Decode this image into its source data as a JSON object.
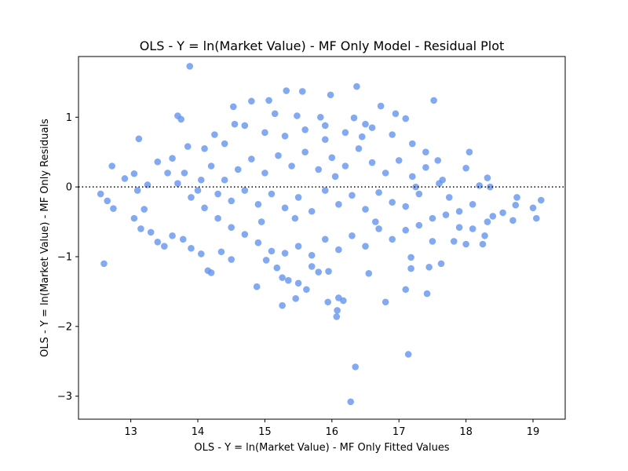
{
  "chart_data": {
    "type": "scatter",
    "title": "OLS - Y = ln(Market Value) - MF Only Model - Residual Plot",
    "xlabel": "OLS - Y = ln(Market Value) - MF Only Fitted Values",
    "ylabel": "OLS - Y = ln(Market Value) - MF Only Residuals",
    "xlim": [
      12.22,
      19.48
    ],
    "ylim": [
      -3.33,
      1.87
    ],
    "xticks": [
      13,
      14,
      15,
      16,
      17,
      18,
      19
    ],
    "yticks": [
      -3,
      -2,
      -1,
      0,
      1
    ],
    "reference_line": {
      "y": 0,
      "style": "dotted"
    },
    "point_color": "#6495ED",
    "points": [
      [
        13.88,
        1.73
      ],
      [
        16.37,
        1.44
      ],
      [
        15.32,
        1.38
      ],
      [
        15.56,
        1.37
      ],
      [
        15.98,
        1.32
      ],
      [
        17.52,
        1.24
      ],
      [
        14.8,
        1.23
      ],
      [
        15.06,
        1.24
      ],
      [
        14.53,
        1.15
      ],
      [
        15.48,
        1.02
      ],
      [
        13.7,
        1.02
      ],
      [
        13.75,
        0.97
      ],
      [
        16.5,
        0.9
      ],
      [
        16.73,
        1.16
      ],
      [
        16.95,
        1.05
      ],
      [
        17.1,
        0.98
      ],
      [
        15.83,
        1.0
      ],
      [
        13.12,
        0.69
      ],
      [
        16.33,
        0.99
      ],
      [
        12.72,
        0.3
      ],
      [
        12.91,
        0.12
      ],
      [
        13.05,
        0.19
      ],
      [
        13.62,
        0.41
      ],
      [
        13.4,
        0.36
      ],
      [
        13.25,
        0.03
      ],
      [
        12.55,
        -0.1
      ],
      [
        12.65,
        -0.2
      ],
      [
        12.74,
        -0.31
      ],
      [
        13.1,
        -0.05
      ],
      [
        13.2,
        -0.32
      ],
      [
        13.05,
        -0.45
      ],
      [
        13.15,
        -0.6
      ],
      [
        13.3,
        -0.65
      ],
      [
        13.4,
        -0.79
      ],
      [
        13.5,
        -0.85
      ],
      [
        13.62,
        -0.7
      ],
      [
        13.78,
        -0.75
      ],
      [
        13.9,
        -0.88
      ],
      [
        14.05,
        -0.96
      ],
      [
        14.15,
        -1.2
      ],
      [
        14.2,
        -1.23
      ],
      [
        14.35,
        -0.93
      ],
      [
        14.5,
        -1.04
      ],
      [
        12.6,
        -1.1
      ],
      [
        14.88,
        -1.43
      ],
      [
        15.02,
        -1.05
      ],
      [
        15.18,
        -1.16
      ],
      [
        15.26,
        -1.3
      ],
      [
        15.35,
        -1.34
      ],
      [
        15.46,
        -1.6
      ],
      [
        15.26,
        -1.7
      ],
      [
        15.5,
        -1.38
      ],
      [
        15.62,
        -1.47
      ],
      [
        15.7,
        -1.14
      ],
      [
        15.8,
        -1.22
      ],
      [
        15.95,
        -1.21
      ],
      [
        15.94,
        -1.65
      ],
      [
        16.08,
        -1.77
      ],
      [
        16.07,
        -1.86
      ],
      [
        16.1,
        -1.59
      ],
      [
        16.17,
        -1.63
      ],
      [
        16.35,
        -2.58
      ],
      [
        16.28,
        -3.08
      ],
      [
        16.55,
        -1.24
      ],
      [
        16.8,
        -1.65
      ],
      [
        17.14,
        -2.4
      ],
      [
        17.1,
        -1.47
      ],
      [
        17.18,
        -1.01
      ],
      [
        17.18,
        -1.17
      ],
      [
        17.42,
        -1.53
      ],
      [
        17.45,
        -1.15
      ],
      [
        17.63,
        -1.1
      ],
      [
        17.5,
        -0.78
      ],
      [
        17.82,
        -0.78
      ],
      [
        18.0,
        -0.82
      ],
      [
        18.25,
        -0.82
      ],
      [
        18.4,
        -0.42
      ],
      [
        18.55,
        -0.37
      ],
      [
        18.7,
        -0.48
      ],
      [
        18.76,
        -0.15
      ],
      [
        18.74,
        -0.26
      ],
      [
        19.0,
        -0.3
      ],
      [
        19.05,
        -0.45
      ],
      [
        19.12,
        -0.19
      ],
      [
        18.32,
        -0.5
      ],
      [
        18.28,
        -0.7
      ],
      [
        18.0,
        0.27
      ],
      [
        18.05,
        0.5
      ],
      [
        18.2,
        0.02
      ],
      [
        18.32,
        0.13
      ],
      [
        18.36,
        0.0
      ],
      [
        18.1,
        -0.25
      ],
      [
        17.9,
        -0.35
      ],
      [
        17.75,
        -0.15
      ],
      [
        17.65,
        0.1
      ],
      [
        17.58,
        0.38
      ],
      [
        17.4,
        0.5
      ],
      [
        17.2,
        0.62
      ],
      [
        16.9,
        0.75
      ],
      [
        16.6,
        0.85
      ],
      [
        16.2,
        0.78
      ],
      [
        15.9,
        0.68
      ],
      [
        15.6,
        0.82
      ],
      [
        15.3,
        0.73
      ],
      [
        15.0,
        0.78
      ],
      [
        14.7,
        0.88
      ],
      [
        14.4,
        0.62
      ],
      [
        14.1,
        0.55
      ],
      [
        13.85,
        0.58
      ],
      [
        13.55,
        0.2
      ],
      [
        13.7,
        0.05
      ],
      [
        13.9,
        -0.15
      ],
      [
        14.1,
        -0.3
      ],
      [
        14.3,
        -0.45
      ],
      [
        14.5,
        -0.58
      ],
      [
        14.7,
        -0.68
      ],
      [
        14.9,
        -0.8
      ],
      [
        15.1,
        -0.92
      ],
      [
        15.3,
        -0.95
      ],
      [
        15.5,
        -0.85
      ],
      [
        15.7,
        -0.98
      ],
      [
        15.9,
        -0.75
      ],
      [
        16.1,
        -0.9
      ],
      [
        16.3,
        -0.7
      ],
      [
        16.5,
        -0.85
      ],
      [
        16.7,
        -0.6
      ],
      [
        16.9,
        -0.75
      ],
      [
        17.1,
        -0.62
      ],
      [
        17.3,
        -0.55
      ],
      [
        17.5,
        -0.45
      ],
      [
        17.7,
        -0.4
      ],
      [
        17.9,
        -0.58
      ],
      [
        18.1,
        -0.6
      ],
      [
        14.2,
        0.3
      ],
      [
        14.4,
        0.1
      ],
      [
        14.6,
        0.25
      ],
      [
        14.8,
        0.4
      ],
      [
        15.0,
        0.2
      ],
      [
        15.2,
        0.45
      ],
      [
        15.4,
        0.3
      ],
      [
        15.6,
        0.5
      ],
      [
        15.8,
        0.25
      ],
      [
        16.0,
        0.42
      ],
      [
        16.2,
        0.3
      ],
      [
        16.4,
        0.55
      ],
      [
        16.6,
        0.35
      ],
      [
        16.8,
        0.2
      ],
      [
        17.0,
        0.38
      ],
      [
        17.2,
        0.15
      ],
      [
        17.4,
        0.28
      ],
      [
        17.6,
        0.05
      ],
      [
        14.3,
        -0.1
      ],
      [
        14.5,
        -0.2
      ],
      [
        14.7,
        -0.05
      ],
      [
        14.9,
        -0.25
      ],
      [
        15.1,
        -0.1
      ],
      [
        15.3,
        -0.3
      ],
      [
        15.5,
        -0.15
      ],
      [
        15.7,
        -0.35
      ],
      [
        15.9,
        -0.05
      ],
      [
        16.1,
        -0.25
      ],
      [
        16.3,
        -0.12
      ],
      [
        16.5,
        -0.32
      ],
      [
        16.7,
        -0.08
      ],
      [
        16.9,
        -0.22
      ],
      [
        17.1,
        -0.28
      ],
      [
        17.3,
        -0.1
      ],
      [
        13.8,
        0.2
      ],
      [
        14.0,
        -0.05
      ],
      [
        14.25,
        0.75
      ],
      [
        14.55,
        0.9
      ],
      [
        15.15,
        1.05
      ],
      [
        15.9,
        0.88
      ],
      [
        16.45,
        0.72
      ],
      [
        16.05,
        0.15
      ],
      [
        15.45,
        -0.45
      ],
      [
        14.95,
        -0.5
      ],
      [
        16.65,
        -0.5
      ],
      [
        17.25,
        0.0
      ],
      [
        14.05,
        0.1
      ]
    ]
  }
}
